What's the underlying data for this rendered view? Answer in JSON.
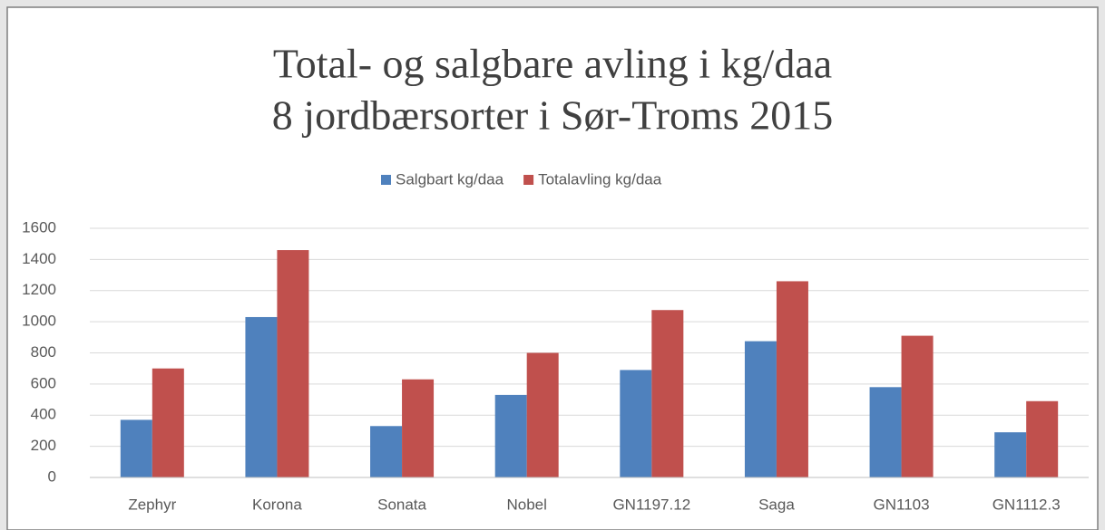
{
  "chart_data": {
    "type": "bar",
    "title": [
      "Total- og salgbare avling i kg/daa",
      "8 jordbærsorter i Sør-Troms 2015"
    ],
    "categories": [
      "Zephyr",
      "Korona",
      "Sonata",
      "Nobel",
      "GN1197.12",
      "Saga",
      "GN1103",
      "GN1112.3"
    ],
    "series": [
      {
        "name": "Salgbart kg/daa",
        "color": "#4f81bd",
        "values": [
          370,
          1030,
          330,
          530,
          690,
          875,
          580,
          290
        ]
      },
      {
        "name": "Totalavling kg/daa",
        "color": "#c0504d",
        "values": [
          700,
          1460,
          630,
          800,
          1075,
          1260,
          910,
          490
        ]
      }
    ],
    "ylim": [
      0,
      1600
    ],
    "yticks": [
      0,
      200,
      400,
      600,
      800,
      1000,
      1200,
      1400,
      1600
    ],
    "grid": true
  }
}
